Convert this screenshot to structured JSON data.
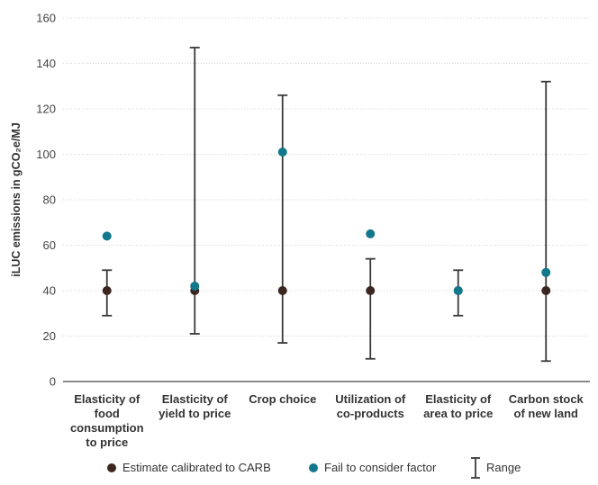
{
  "chart_data": {
    "type": "scatter",
    "ylabel": "iLUC emissions in gCO₂e/MJ",
    "ylim": [
      0,
      160
    ],
    "yticks": [
      0,
      20,
      40,
      60,
      80,
      100,
      120,
      140,
      160
    ],
    "grid": "horizontal",
    "categories": [
      [
        "Elasticity of",
        "food",
        "consumption",
        "to price"
      ],
      [
        "Elasticity of",
        "yield to price"
      ],
      [
        "Crop choice"
      ],
      [
        "Utilization of",
        "co-products"
      ],
      [
        "Elasticity of",
        "area to price"
      ],
      [
        "Carbon stock",
        "of new land"
      ]
    ],
    "series": [
      {
        "name": "Estimate calibrated to CARB",
        "color": "#3b2620",
        "values": [
          40,
          40,
          40,
          40,
          40,
          40
        ]
      },
      {
        "name": "Fail to consider factor",
        "color": "#12788c",
        "values": [
          64,
          42,
          101,
          65,
          40,
          48
        ]
      }
    ],
    "ranges": {
      "name": "Range",
      "color": "#3a3a3a",
      "low": [
        29,
        21,
        17,
        10,
        29,
        9
      ],
      "high": [
        49,
        147,
        126,
        54,
        49,
        132
      ]
    },
    "legend_position": "bottom-center"
  }
}
